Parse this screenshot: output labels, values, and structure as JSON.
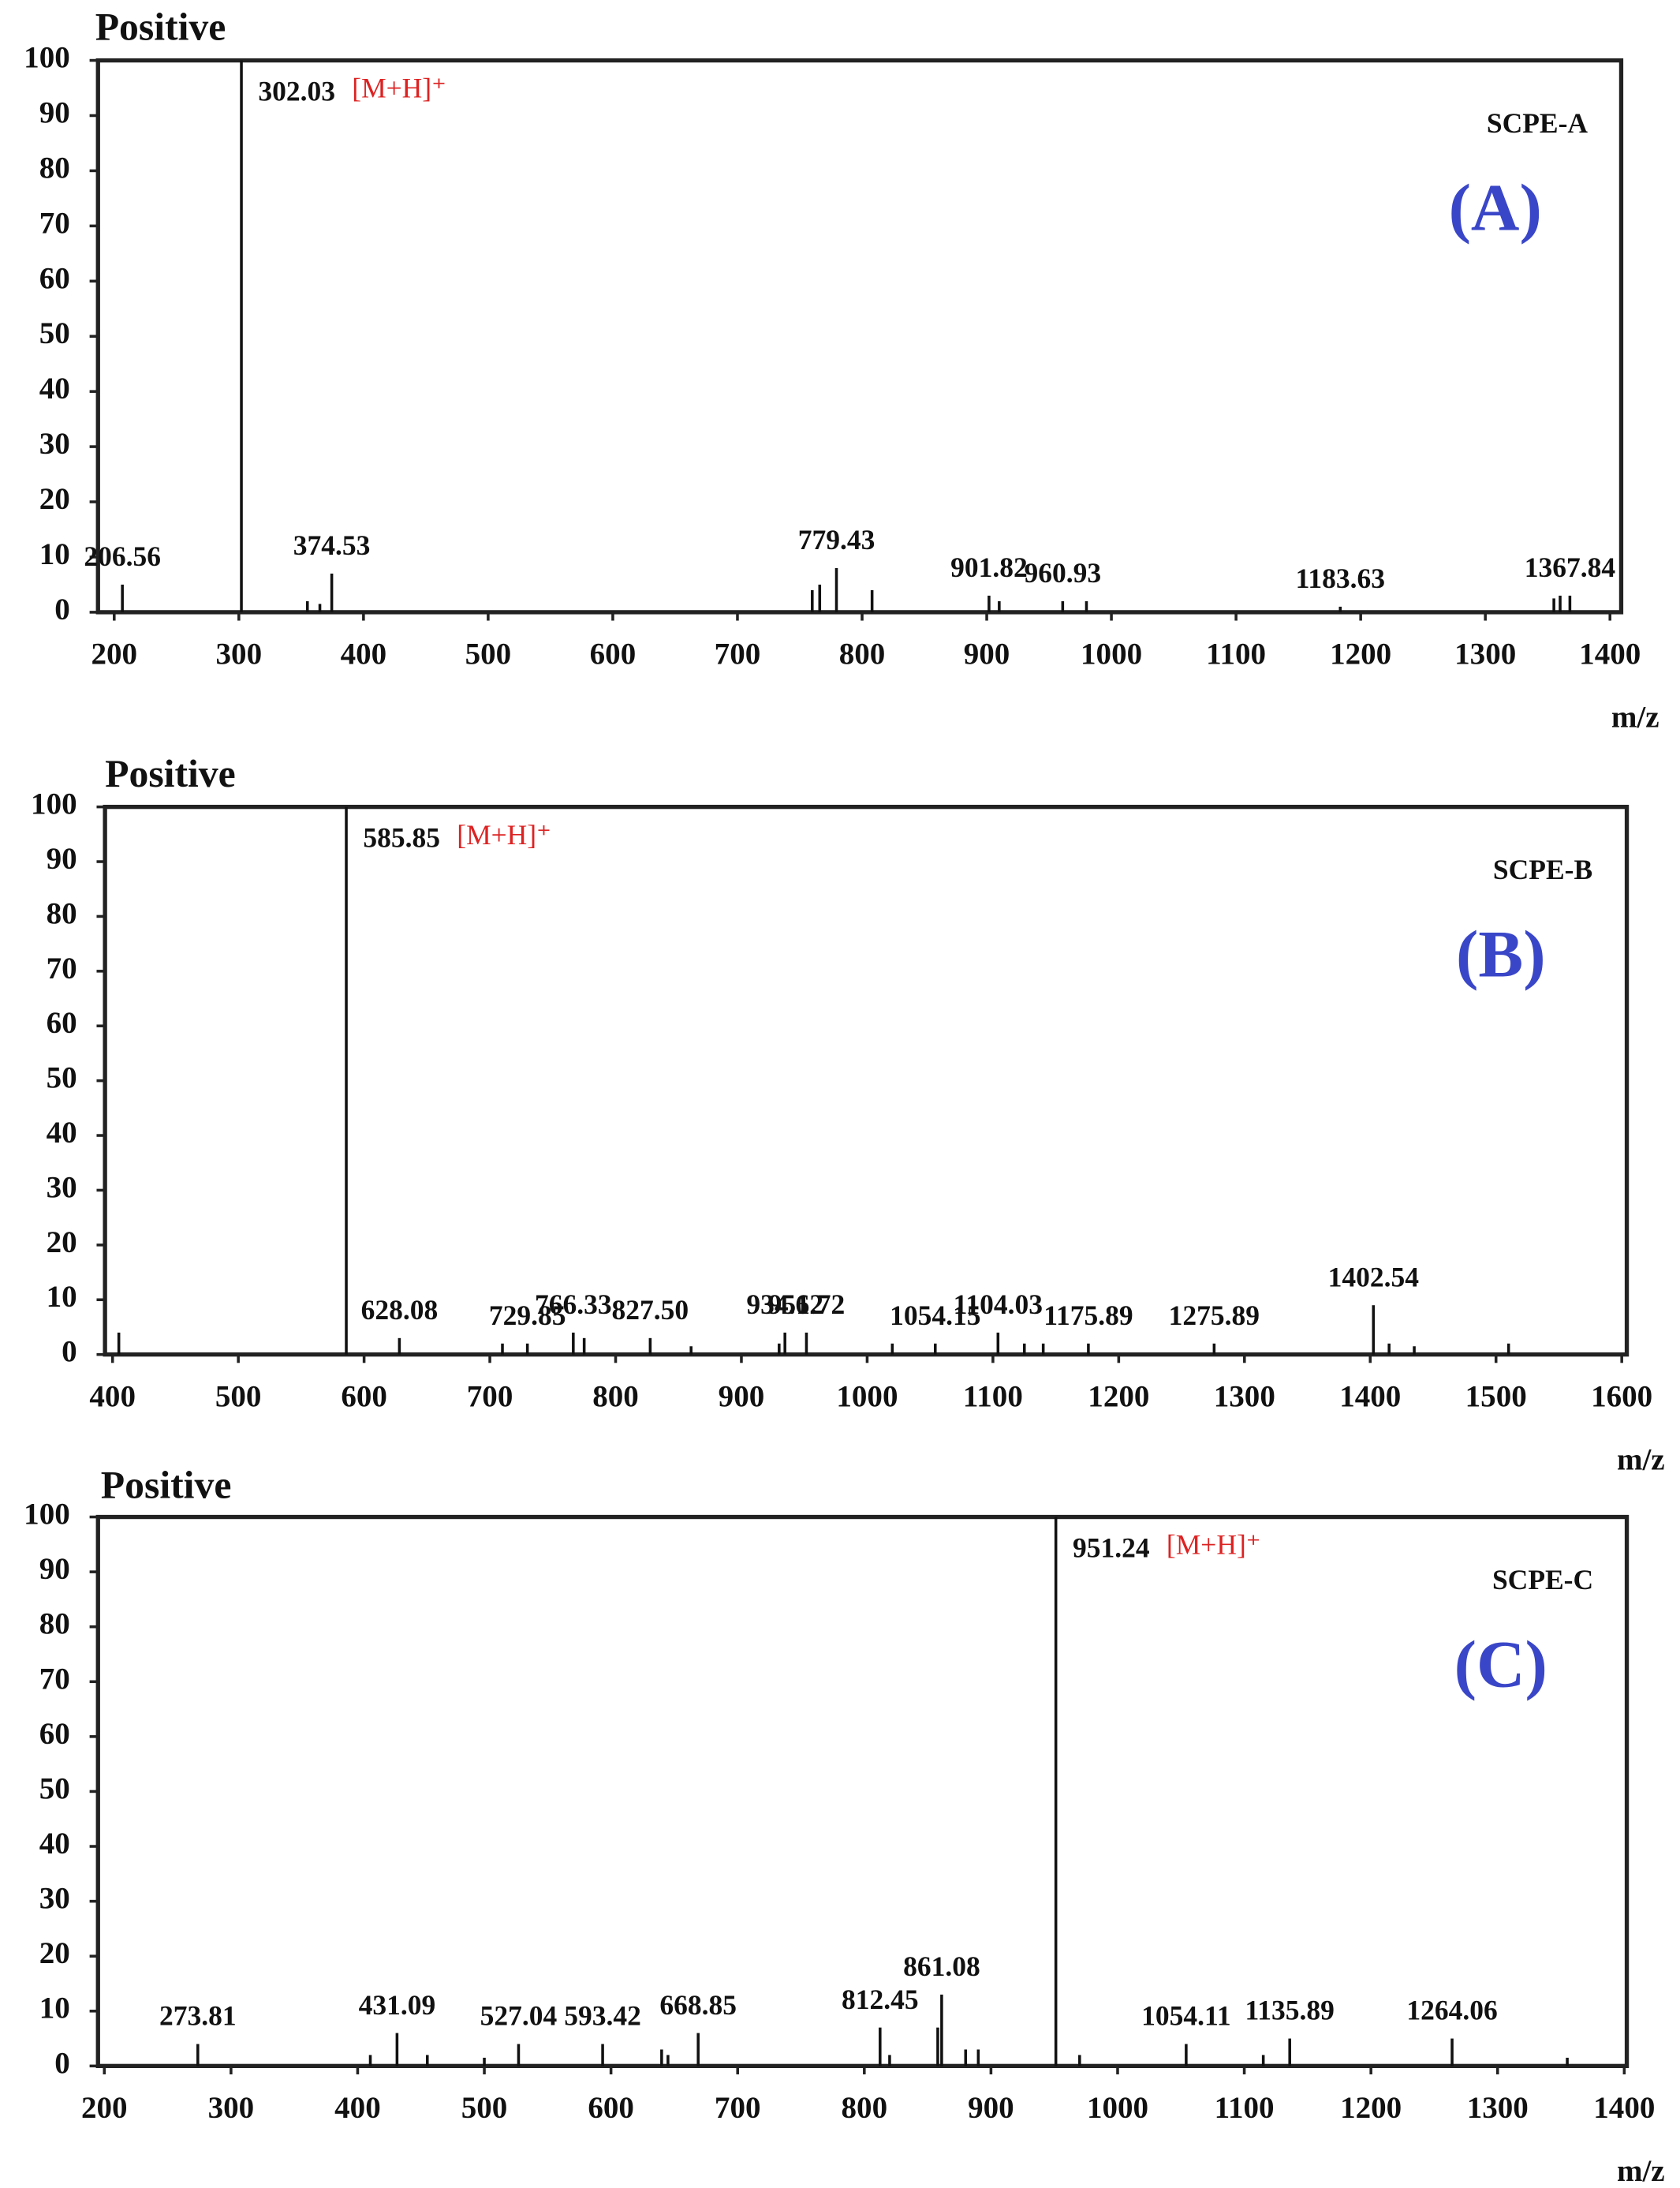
{
  "chart_data": [
    {
      "type": "bar",
      "title": "Positive",
      "sample": "SCPE-A",
      "panel": "(A)",
      "ion_label": "[M+H]⁺",
      "xlabel": "m/z",
      "xlim": [
        187,
        1409
      ],
      "xticks": [
        200,
        300,
        400,
        500,
        600,
        700,
        800,
        900,
        1000,
        1100,
        1200,
        1300,
        1400
      ],
      "ylim": [
        0,
        100
      ],
      "yticks": [
        0,
        10,
        20,
        30,
        40,
        50,
        60,
        70,
        80,
        90,
        100
      ],
      "color": "#111",
      "x": [
        302.03,
        206.56,
        374.53,
        779.43,
        901.82,
        960.93,
        1183.63,
        1367.84
      ],
      "x_labels": [
        "302.03",
        "206.56",
        "374.53",
        "779.43",
        "901.82",
        "960.93",
        "1183.63",
        "1367.84"
      ],
      "values": [
        100,
        5,
        7,
        8,
        3,
        2,
        1,
        3
      ],
      "minor_x": [
        355,
        365,
        760,
        766,
        808,
        910,
        980,
        1355,
        1360
      ],
      "minor_values": [
        2,
        1.5,
        4,
        5,
        4,
        2,
        2,
        2.5,
        3
      ]
    },
    {
      "type": "bar",
      "title": "Positive",
      "sample": "SCPE-B",
      "panel": "(B)",
      "ion_label": "[M+H]⁺",
      "xlabel": "m/z",
      "xlim": [
        394,
        1604
      ],
      "xticks": [
        400,
        500,
        600,
        700,
        800,
        900,
        1000,
        1100,
        1200,
        1300,
        1400,
        1500,
        1600
      ],
      "ylim": [
        0,
        100
      ],
      "yticks": [
        0,
        10,
        20,
        30,
        40,
        50,
        60,
        70,
        80,
        90,
        100
      ],
      "color": "#111",
      "x": [
        585.85,
        628.08,
        729.85,
        766.33,
        827.5,
        934.62,
        951.72,
        1054.15,
        1104.03,
        1175.89,
        1275.89,
        1402.54
      ],
      "x_labels": [
        "585.85",
        "628.08",
        "729.85",
        "766.33",
        "827.50",
        "934.62",
        "951.72",
        "1054.15",
        "1104.03",
        "1175.89",
        "1275.89",
        "1402.54"
      ],
      "values": [
        100,
        3,
        2,
        4,
        3,
        4,
        4,
        2,
        4,
        2,
        2,
        9
      ],
      "minor_x": [
        405,
        710,
        775,
        860,
        930,
        1020,
        1125,
        1140,
        1415,
        1435,
        1510
      ],
      "minor_values": [
        4,
        2,
        3,
        1.5,
        2,
        2,
        2,
        2,
        2,
        1.5,
        2
      ]
    },
    {
      "type": "bar",
      "title": "Positive",
      "sample": "SCPE-C",
      "panel": "(C)",
      "ion_label": "[M+H]⁺",
      "xlabel": "m/z",
      "xlim": [
        195,
        1402
      ],
      "xticks": [
        200,
        300,
        400,
        500,
        600,
        700,
        800,
        900,
        1000,
        1100,
        1200,
        1300,
        1400
      ],
      "ylim": [
        0,
        100
      ],
      "yticks": [
        0,
        10,
        20,
        30,
        40,
        50,
        60,
        70,
        80,
        90,
        100
      ],
      "color": "#111",
      "x": [
        951.24,
        273.81,
        431.09,
        527.04,
        593.42,
        668.85,
        812.45,
        861.08,
        1054.11,
        1135.89,
        1264.06
      ],
      "x_labels": [
        "951.24",
        "273.81",
        "431.09",
        "527.04",
        "593.42",
        "668.85",
        "812.45",
        "861.08",
        "1054.11",
        "1135.89",
        "1264.06"
      ],
      "values": [
        100,
        4,
        6,
        4,
        4,
        6,
        7,
        13,
        4,
        5,
        5
      ],
      "minor_x": [
        410,
        455,
        500,
        640,
        645,
        820,
        858,
        880,
        890,
        970,
        1115,
        1355
      ],
      "minor_values": [
        2,
        2,
        1.5,
        3,
        2,
        2,
        7,
        3,
        3,
        2,
        2,
        1.5
      ]
    }
  ]
}
